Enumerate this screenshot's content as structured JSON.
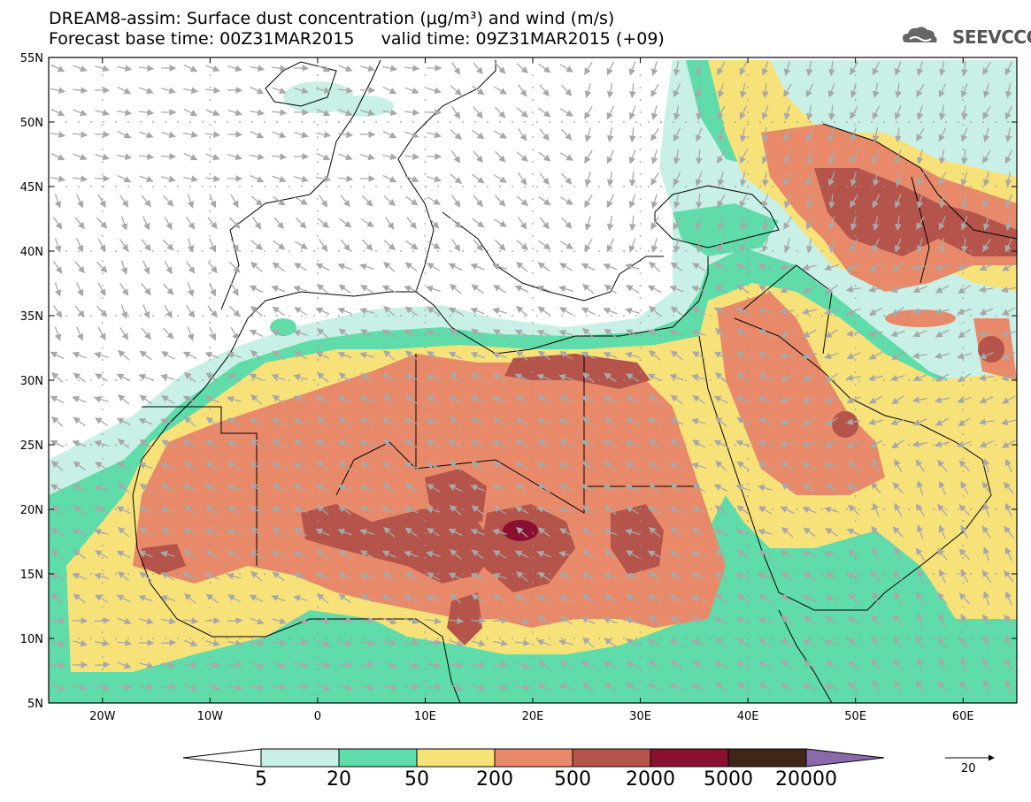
{
  "title_line1": "DREAM8-assim: Surface dust concentration (μg/m³) and wind (m/s)",
  "title_line2": "Forecast base time: 00Z31MAR2015     valid time: 09Z31MAR2015 (+09)",
  "logo_text": "SEEVCCC",
  "lat_labels": [
    "55N",
    "50N",
    "45N",
    "40N",
    "35N",
    "30N",
    "25N",
    "20N",
    "15N",
    "10N",
    "5N"
  ],
  "lon_labels": [
    "20W",
    "10W",
    "0",
    "10E",
    "20E",
    "30E",
    "40E",
    "50E",
    "60E"
  ],
  "colorbar": {
    "labels": [
      "5",
      "20",
      "50",
      "200",
      "500",
      "2000",
      "5000",
      "20000"
    ],
    "colors": [
      "#ffffff",
      "#c8f0e6",
      "#5fdcaa",
      "#f7e27a",
      "#e88a6a",
      "#b5544a",
      "#8a1030",
      "#3e2618",
      "#8a6aaa"
    ]
  },
  "vector_ref_label": "20",
  "colors": {
    "wind_arrow": "#a8a8a8",
    "coast": "#000000"
  }
}
